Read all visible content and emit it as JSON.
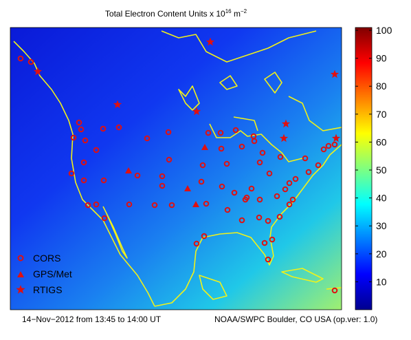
{
  "title": {
    "text": "Total Electron Content Units x 10",
    "exponent": "16",
    "unit": "m",
    "unit_exponent": "−2"
  },
  "legend": [
    "CORS",
    "GPS/Met",
    "RTIGS"
  ],
  "colorbar": {
    "range": [
      0,
      101
    ],
    "ticks": [
      10,
      20,
      30,
      40,
      50,
      60,
      70,
      80,
      90,
      100
    ]
  },
  "footer": {
    "left": "14−Nov−2012 from 13:45 to 14:00 UT",
    "right": "NOAA/SWPC Boulder, CO USA (op.ver: 1.0)"
  }
}
